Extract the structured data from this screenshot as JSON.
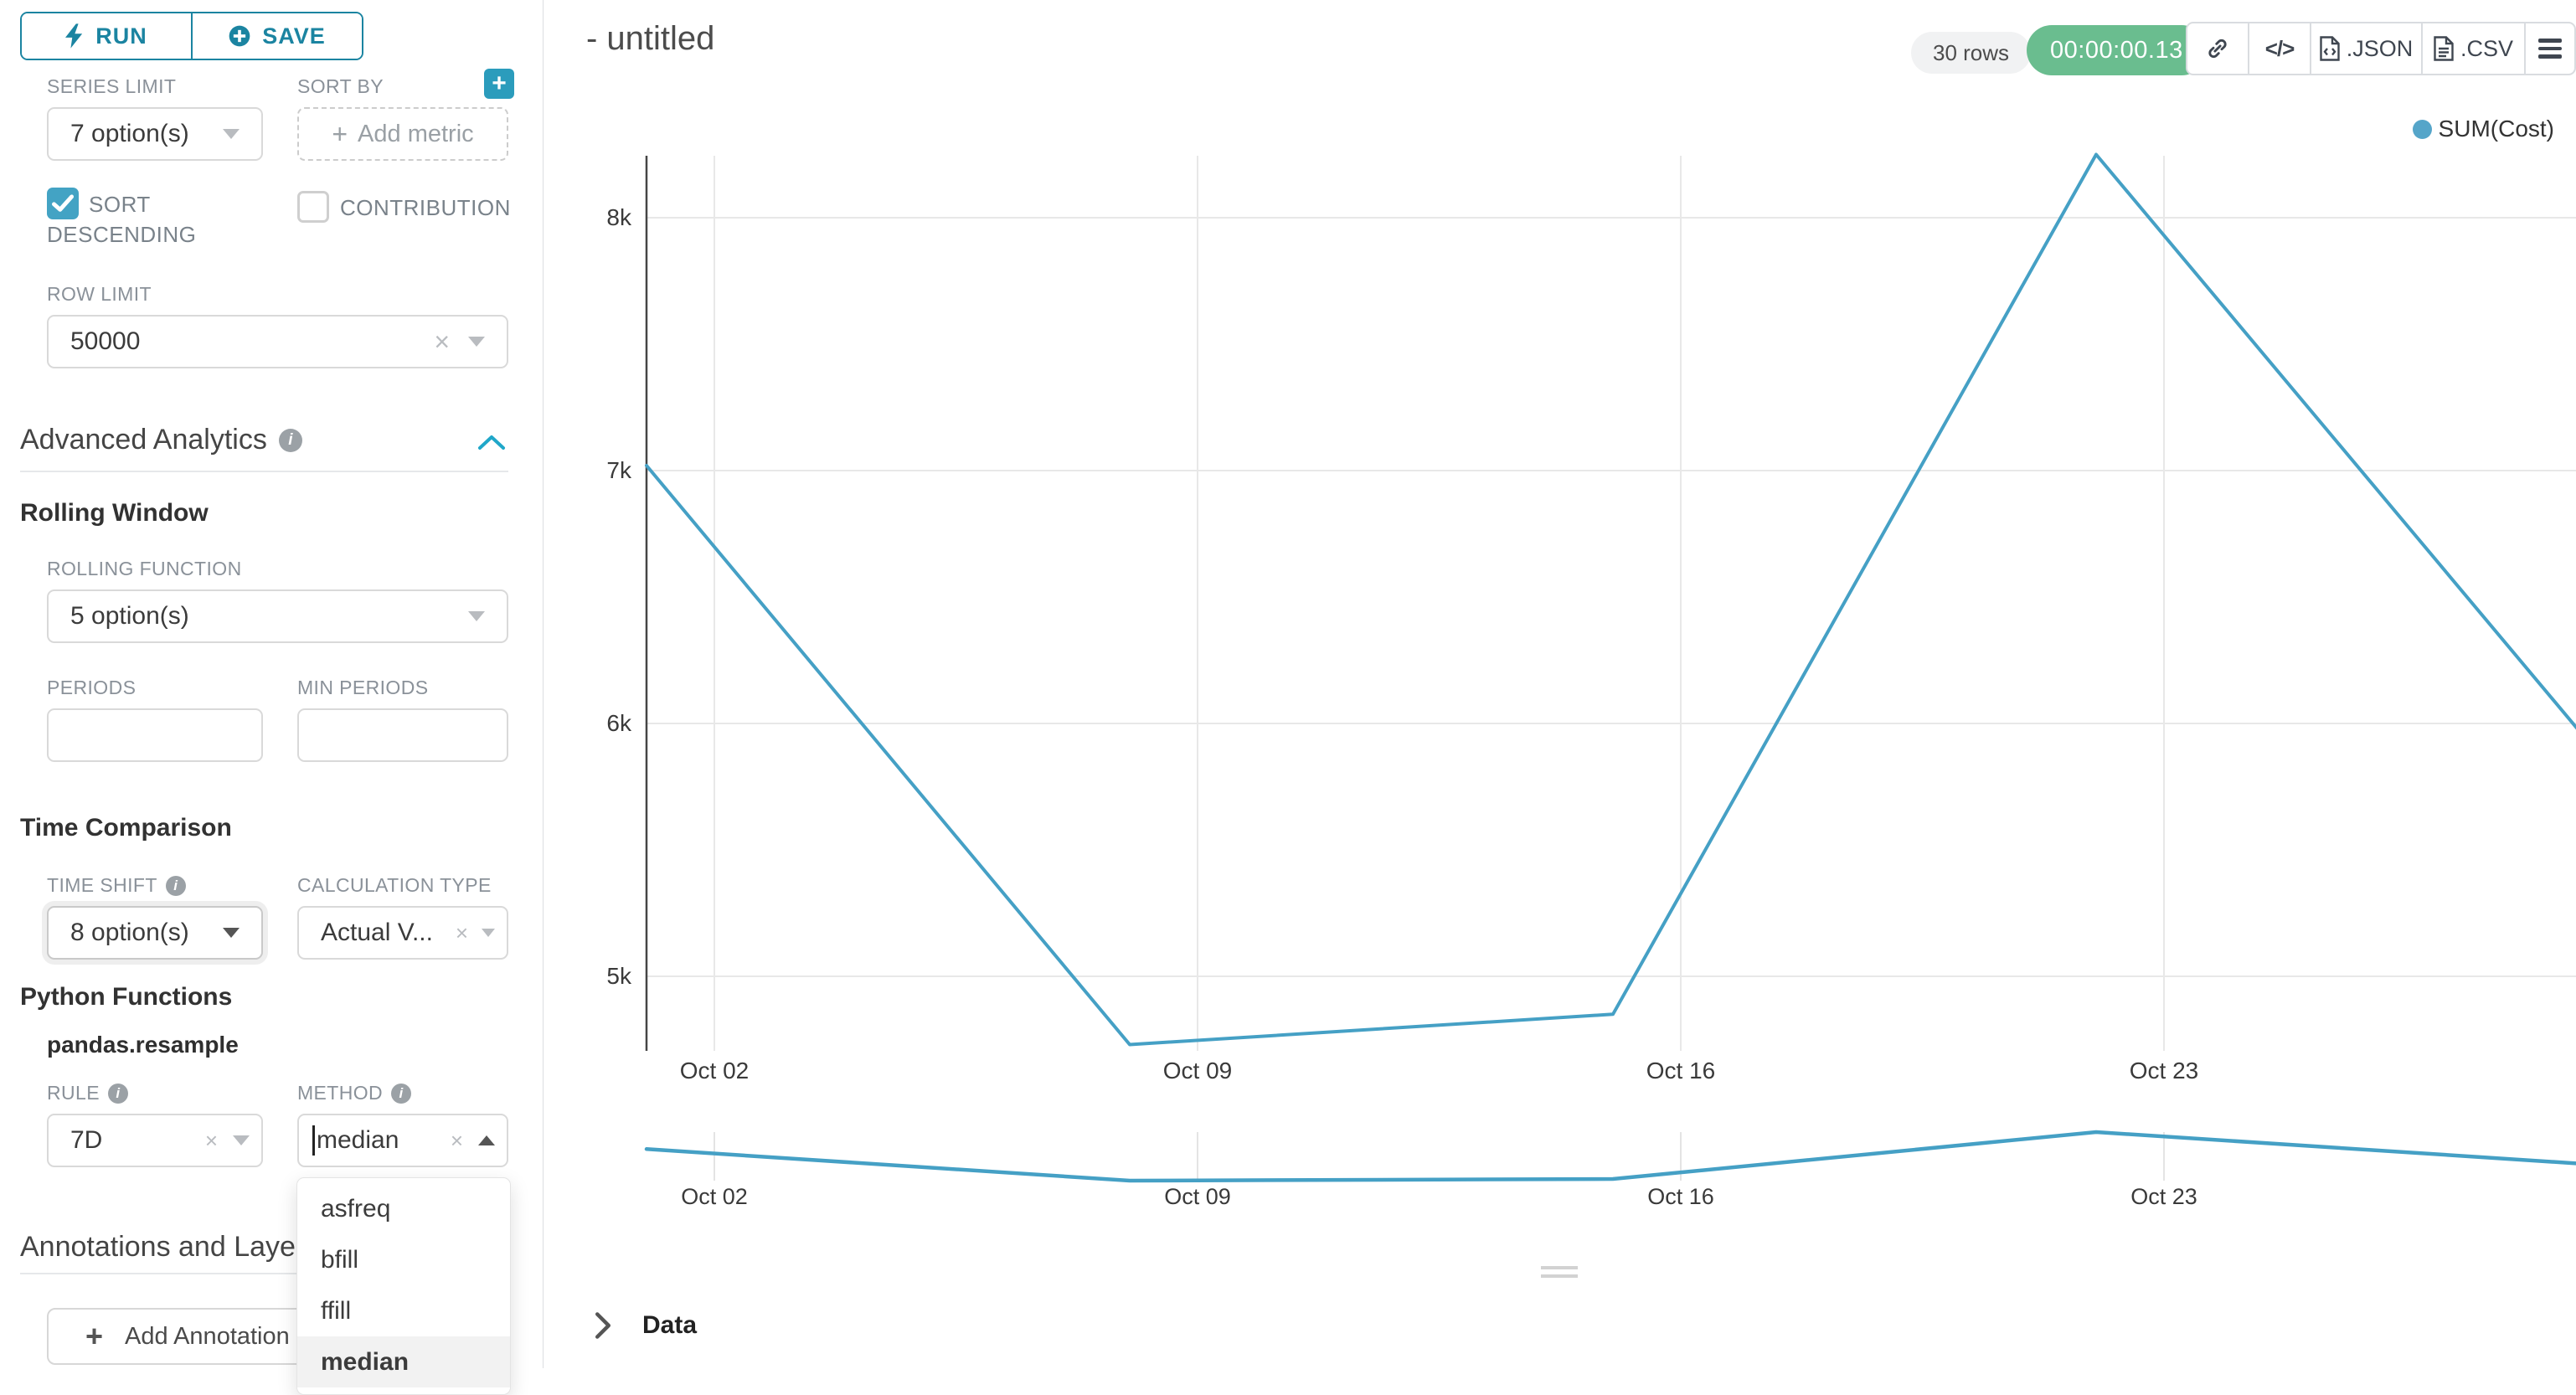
{
  "icons": {
    "plus": "+",
    "clear": "×",
    "code": "</>",
    "info": "i"
  },
  "panel": {
    "run_label": "RUN",
    "save_label": "SAVE",
    "series_limit": {
      "label": "SERIES LIMIT",
      "value": "7 option(s)"
    },
    "sort_by": {
      "label": "SORT BY",
      "placeholder": "Add metric"
    },
    "sort_descending_label_line1": "SORT",
    "sort_descending_label_line2": "DESCENDING",
    "contribution_label": "CONTRIBUTION",
    "row_limit": {
      "label": "ROW LIMIT",
      "value": "50000"
    },
    "advanced_analytics_title": "Advanced Analytics",
    "rolling_window_title": "Rolling Window",
    "rolling_function": {
      "label": "ROLLING FUNCTION",
      "value": "5 option(s)"
    },
    "periods_label": "PERIODS",
    "min_periods_label": "MIN PERIODS",
    "time_comparison_title": "Time Comparison",
    "time_shift": {
      "label": "TIME SHIFT",
      "value": "8 option(s)"
    },
    "calculation_type": {
      "label": "CALCULATION TYPE",
      "value": "Actual V..."
    },
    "python_functions_title": "Python Functions",
    "pandas_resample_title": "pandas.resample",
    "rule": {
      "label": "RULE",
      "value": "7D"
    },
    "method": {
      "label": "METHOD",
      "value": "median",
      "options": [
        "asfreq",
        "bfill",
        "ffill",
        "median"
      ],
      "selected": "median"
    },
    "annotations_title": "Annotations and Layers",
    "add_annotation_label": "Add Annotation Layer"
  },
  "header": {
    "title": "- untitled",
    "rows_badge": "30 rows",
    "timer_badge": "00:00:00.13",
    "json_label": ".JSON",
    "csv_label": ".CSV"
  },
  "data_section": {
    "label": "Data"
  },
  "chart_data": {
    "type": "line",
    "title": "",
    "legend": [
      {
        "name": "SUM(Cost)",
        "color": "#55a5c9"
      }
    ],
    "legend_position": "top-right",
    "x": [
      "Oct 01",
      "Oct 08",
      "Oct 15",
      "Oct 22",
      "Oct 29"
    ],
    "series": [
      {
        "name": "SUM(Cost)",
        "values": [
          7020,
          4730,
          4850,
          8250,
          5970
        ]
      }
    ],
    "xticks": [
      "Oct 02",
      "Oct 09",
      "Oct 16",
      "Oct 23"
    ],
    "yticks": [
      "8k",
      "7k",
      "6k",
      "5k"
    ],
    "ylabel": "",
    "xlabel": "",
    "ylim": [
      4600,
      8300
    ],
    "grid": true,
    "line_color": "#45a0c5",
    "has_mini_preview": true
  }
}
